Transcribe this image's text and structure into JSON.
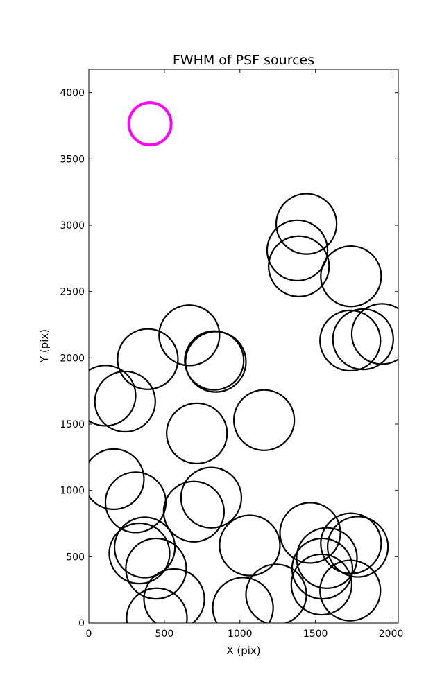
{
  "chart_data": {
    "type": "scatter",
    "title": "FWHM of PSF sources",
    "xlabel": "X (pix)",
    "ylabel": "Y (pix)",
    "xlim": [
      0,
      2048
    ],
    "ylim": [
      0,
      4176
    ],
    "xticks": [
      0,
      500,
      1000,
      1500,
      2000
    ],
    "yticks": [
      0,
      500,
      1000,
      1500,
      2000,
      2500,
      3000,
      3500,
      4000
    ],
    "grid": false,
    "marker": "open circle, radius proportional to FWHM",
    "colors": {
      "sources": "#000000",
      "reference": "#ff00ff"
    },
    "reference_circle": {
      "x": 405,
      "y": 3765,
      "r": 140
    },
    "sources": [
      {
        "x": 1440,
        "y": 3010,
        "r": 200
      },
      {
        "x": 1380,
        "y": 2810,
        "r": 200
      },
      {
        "x": 1390,
        "y": 2690,
        "r": 200
      },
      {
        "x": 1735,
        "y": 2615,
        "r": 200
      },
      {
        "x": 1730,
        "y": 2130,
        "r": 200
      },
      {
        "x": 1815,
        "y": 2140,
        "r": 200
      },
      {
        "x": 1940,
        "y": 2180,
        "r": 200
      },
      {
        "x": 665,
        "y": 2170,
        "r": 200
      },
      {
        "x": 390,
        "y": 1990,
        "r": 200
      },
      {
        "x": 840,
        "y": 1970,
        "r": 200
      },
      {
        "x": 830,
        "y": 1980,
        "r": 195
      },
      {
        "x": 110,
        "y": 1715,
        "r": 200
      },
      {
        "x": 240,
        "y": 1670,
        "r": 200
      },
      {
        "x": 1160,
        "y": 1530,
        "r": 200
      },
      {
        "x": 715,
        "y": 1430,
        "r": 200
      },
      {
        "x": 165,
        "y": 1085,
        "r": 200
      },
      {
        "x": 310,
        "y": 910,
        "r": 200
      },
      {
        "x": 810,
        "y": 945,
        "r": 200
      },
      {
        "x": 695,
        "y": 840,
        "r": 200
      },
      {
        "x": 1465,
        "y": 680,
        "r": 200
      },
      {
        "x": 1735,
        "y": 600,
        "r": 200
      },
      {
        "x": 1780,
        "y": 575,
        "r": 200
      },
      {
        "x": 1065,
        "y": 585,
        "r": 200
      },
      {
        "x": 370,
        "y": 570,
        "r": 200
      },
      {
        "x": 335,
        "y": 525,
        "r": 200
      },
      {
        "x": 1575,
        "y": 490,
        "r": 200
      },
      {
        "x": 445,
        "y": 410,
        "r": 200
      },
      {
        "x": 1545,
        "y": 410,
        "r": 200
      },
      {
        "x": 1540,
        "y": 290,
        "r": 200
      },
      {
        "x": 1730,
        "y": 245,
        "r": 200
      },
      {
        "x": 1240,
        "y": 215,
        "r": 200
      },
      {
        "x": 565,
        "y": 180,
        "r": 200
      },
      {
        "x": 1020,
        "y": 115,
        "r": 200
      },
      {
        "x": 450,
        "y": 35,
        "r": 200
      }
    ]
  }
}
